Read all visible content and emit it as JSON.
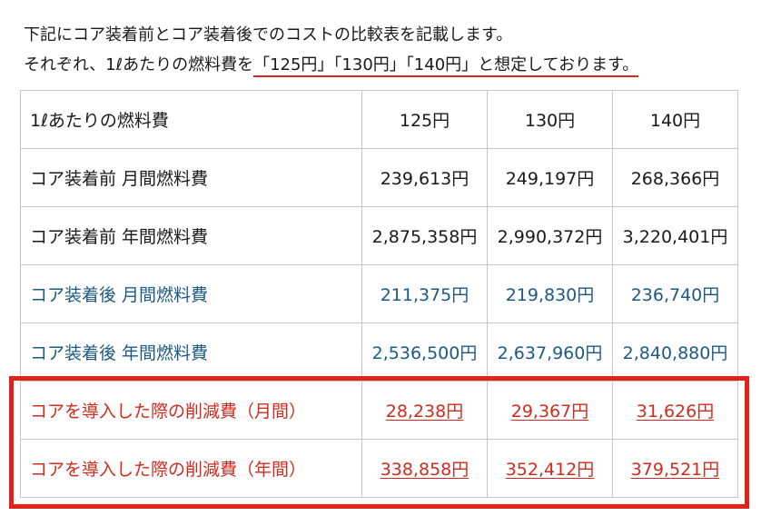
{
  "intro": {
    "line1": "下記にコア装着前とコア装着後でのコストの比較表を記載します。",
    "line2_prefix": "それぞれ、1ℓあたりの燃料費を",
    "line2_highlight": "「125円」「130円」「140円」と想定しております。"
  },
  "table": {
    "header": {
      "label": "1ℓあたりの燃料費",
      "cols": [
        "125円",
        "130円",
        "140円"
      ]
    },
    "rows": [
      {
        "label": "コア装着前 月間燃料費",
        "values": [
          "239,613円",
          "249,197円",
          "268,366円"
        ]
      },
      {
        "label": "コア装着前 年間燃料費",
        "values": [
          "2,875,358円",
          "2,990,372円",
          "3,220,401円"
        ]
      },
      {
        "label": "コア装着後 月間燃料費",
        "values": [
          "211,375円",
          "219,830円",
          "236,740円"
        ]
      },
      {
        "label": "コア装着後 年間燃料費",
        "values": [
          "2,536,500円",
          "2,637,960円",
          "2,840,880円"
        ]
      },
      {
        "label": "コアを導入した際の削減費（月間）",
        "values": [
          "28,238円",
          "29,367円",
          "31,626円"
        ]
      },
      {
        "label": "コアを導入した際の削減費（年間）",
        "values": [
          "338,858円",
          "352,412円",
          "379,521円"
        ]
      }
    ]
  },
  "colors": {
    "after_text": "#1c5a86",
    "savings_text": "#d42a1e",
    "highlight_frame": "#e0241c"
  }
}
